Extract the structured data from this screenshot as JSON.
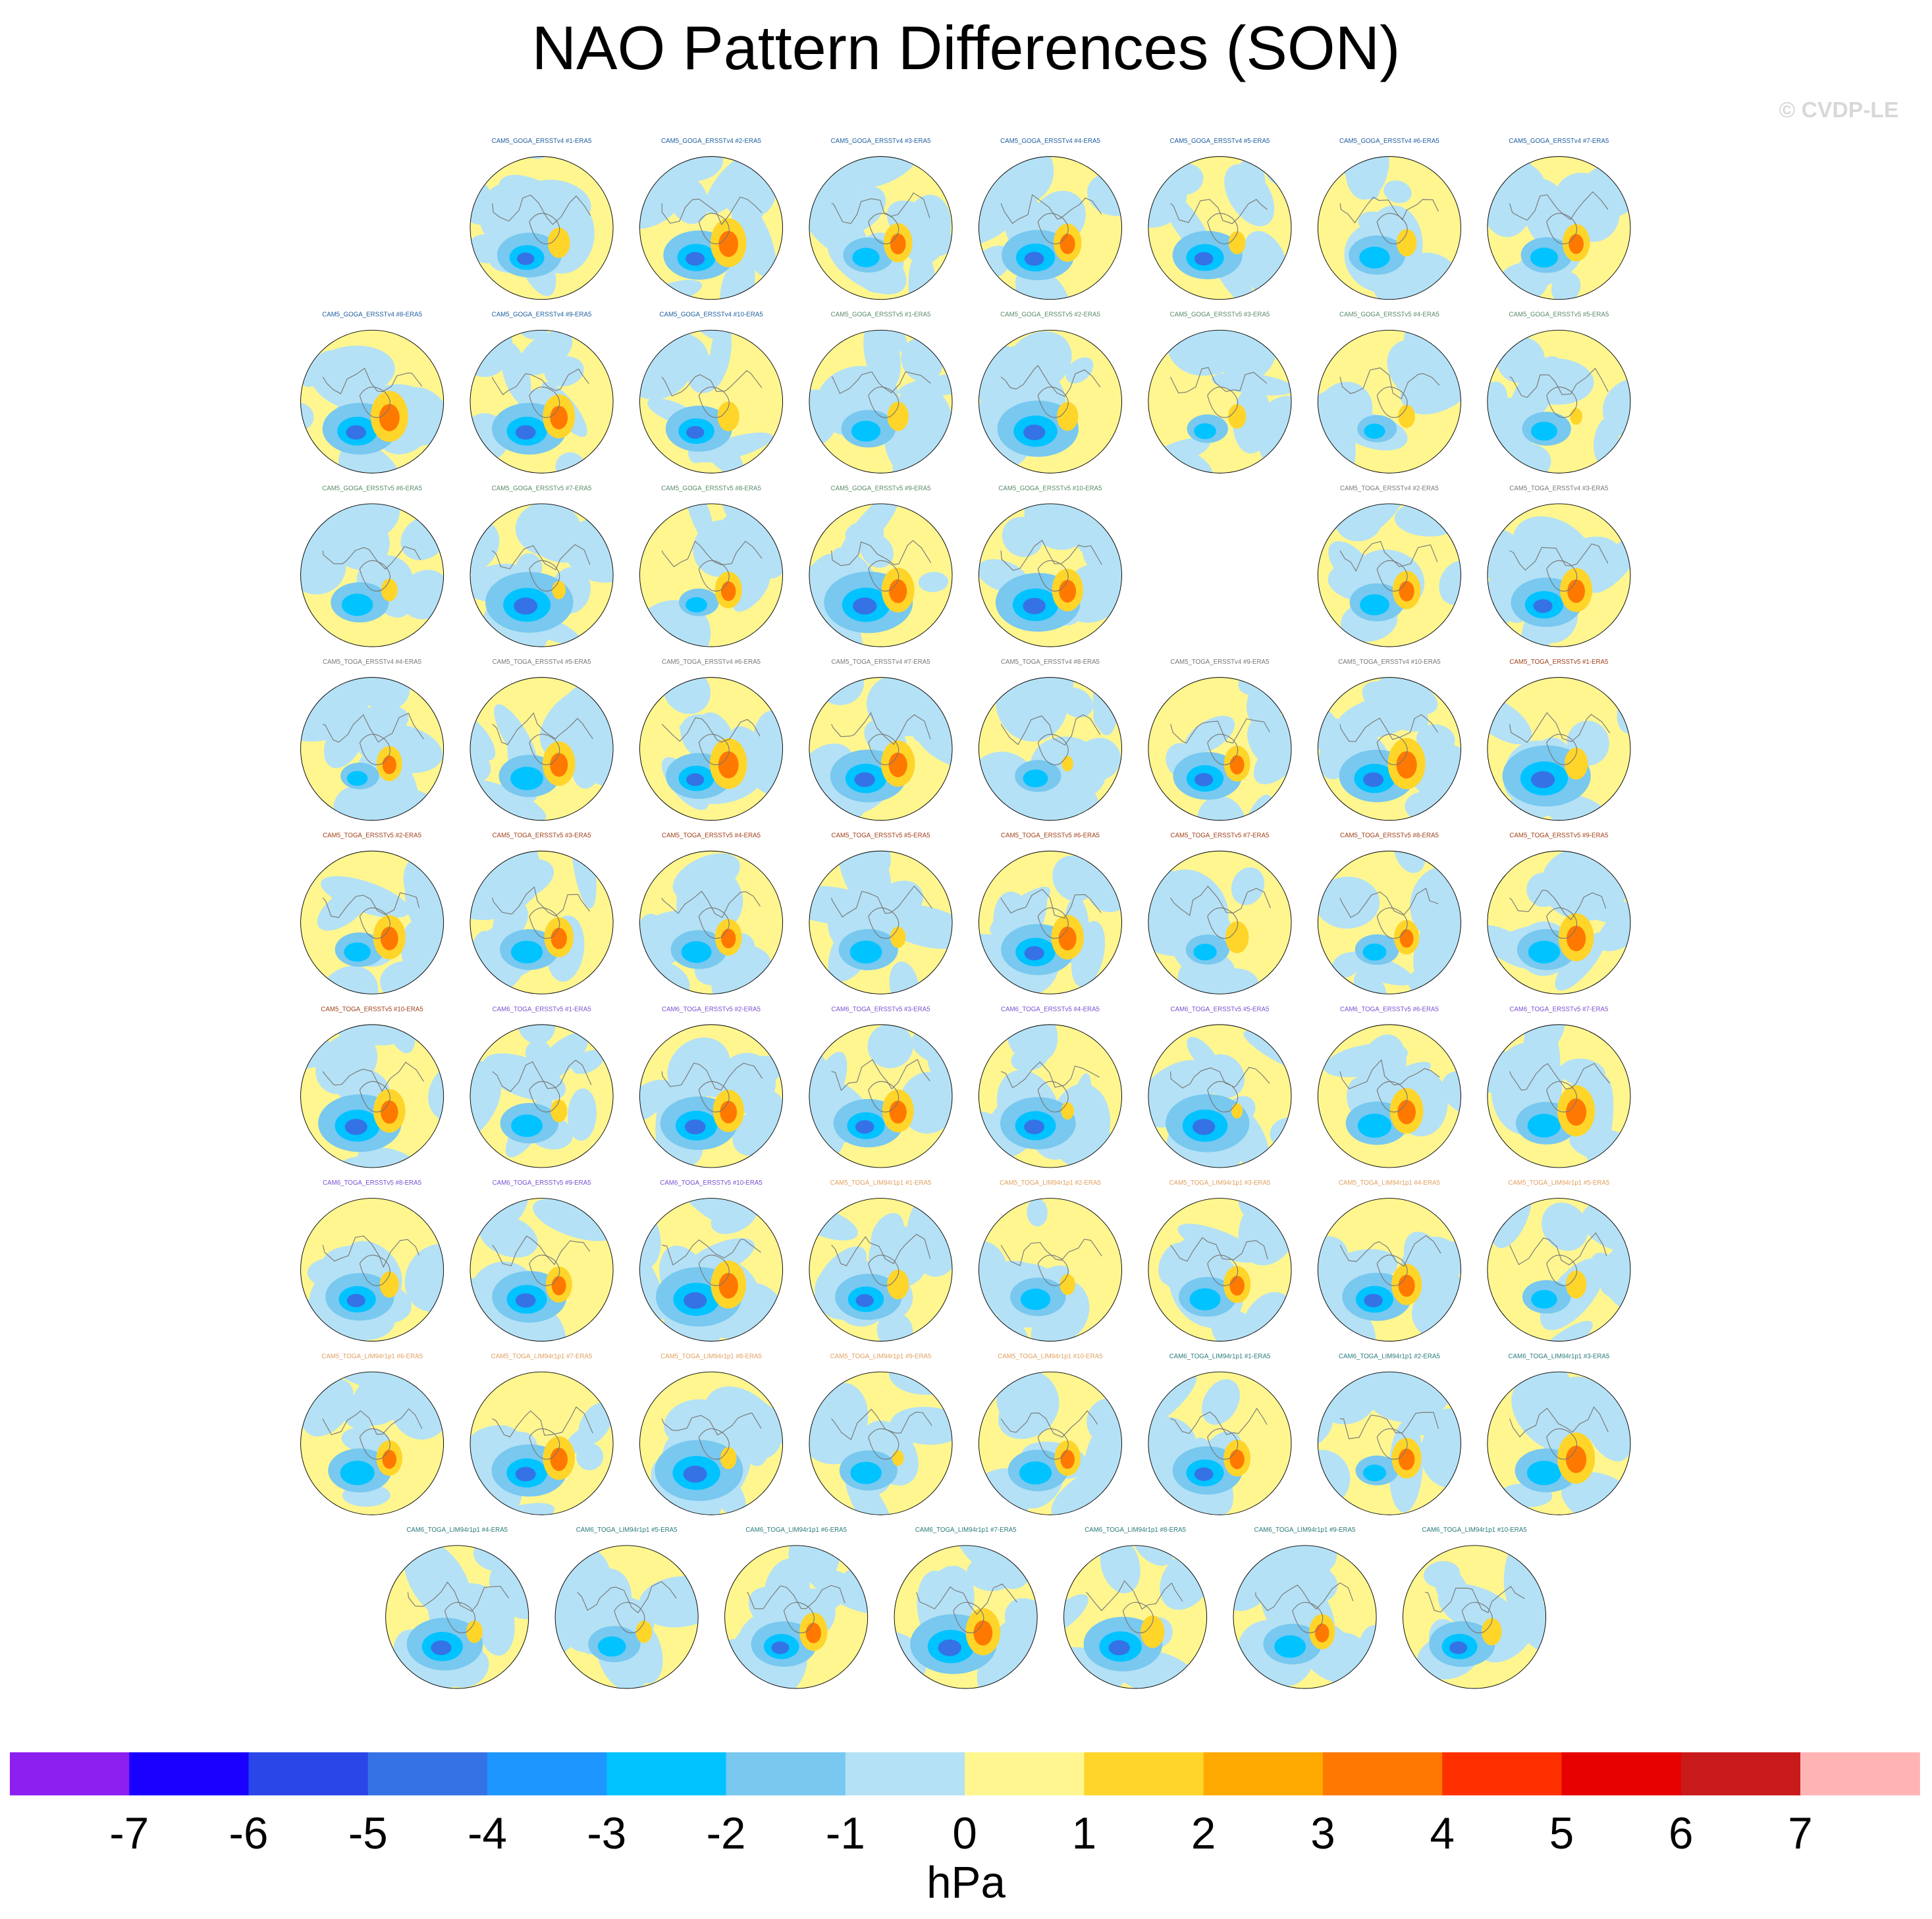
{
  "chart_data": {
    "type": "map-panels",
    "title": "NAO Pattern Differences (SON)",
    "watermark": "© CVDP-LE",
    "groups": [
      {
        "color": "#1f5fa0",
        "titles": [
          "CAM5_GOGA_ERSSTv4 #1-ERA5",
          "CAM5_GOGA_ERSSTv4 #2-ERA5",
          "CAM5_GOGA_ERSSTv4 #3-ERA5",
          "CAM5_GOGA_ERSSTv4 #4-ERA5",
          "CAM5_GOGA_ERSSTv4 #5-ERA5",
          "CAM5_GOGA_ERSSTv4 #6-ERA5",
          "CAM5_GOGA_ERSSTv4 #7-ERA5",
          "CAM5_GOGA_ERSSTv4 #8-ERA5",
          "CAM5_GOGA_ERSSTv4 #9-ERA5",
          "CAM5_GOGA_ERSSTv4 #10-ERA5"
        ]
      },
      {
        "color": "#5a8a6a",
        "titles": [
          "CAM5_GOGA_ERSSTv5 #1-ERA5",
          "CAM5_GOGA_ERSSTv5 #2-ERA5",
          "CAM5_GOGA_ERSSTv5 #3-ERA5",
          "CAM5_GOGA_ERSSTv5 #4-ERA5",
          "CAM5_GOGA_ERSSTv5 #5-ERA5",
          "CAM5_GOGA_ERSSTv5 #6-ERA5",
          "CAM5_GOGA_ERSSTv5 #7-ERA5",
          "CAM5_GOGA_ERSSTv5 #8-ERA5",
          "CAM5_GOGA_ERSSTv5 #9-ERA5",
          "CAM5_GOGA_ERSSTv5 #10-ERA5"
        ]
      },
      {
        "color": "#777777",
        "titles": [
          "CAM5_TOGA_ERSSTv4 #2-ERA5",
          "CAM5_TOGA_ERSSTv4 #3-ERA5",
          "CAM5_TOGA_ERSSTv4 #4-ERA5",
          "CAM5_TOGA_ERSSTv4 #5-ERA5",
          "CAM5_TOGA_ERSSTv4 #6-ERA5",
          "CAM5_TOGA_ERSSTv4 #7-ERA5",
          "CAM5_TOGA_ERSSTv4 #8-ERA5",
          "CAM5_TOGA_ERSSTv4 #9-ERA5",
          "CAM5_TOGA_ERSSTv4 #10-ERA5"
        ]
      },
      {
        "color": "#a0401a",
        "titles": [
          "CAM5_TOGA_ERSSTv5 #1-ERA5",
          "CAM5_TOGA_ERSSTv5 #2-ERA5",
          "CAM5_TOGA_ERSSTv5 #3-ERA5",
          "CAM5_TOGA_ERSSTv5 #4-ERA5",
          "CAM5_TOGA_ERSSTv5 #5-ERA5",
          "CAM5_TOGA_ERSSTv5 #6-ERA5",
          "CAM5_TOGA_ERSSTv5 #7-ERA5",
          "CAM5_TOGA_ERSSTv5 #8-ERA5",
          "CAM5_TOGA_ERSSTv5 #9-ERA5",
          "CAM5_TOGA_ERSSTv5 #10-ERA5"
        ]
      },
      {
        "color": "#7a4fd0",
        "titles": [
          "CAM6_TOGA_ERSSTv5 #1-ERA5",
          "CAM6_TOGA_ERSSTv5 #2-ERA5",
          "CAM6_TOGA_ERSSTv5 #3-ERA5",
          "CAM6_TOGA_ERSSTv5 #4-ERA5",
          "CAM6_TOGA_ERSSTv5 #5-ERA5",
          "CAM6_TOGA_ERSSTv5 #6-ERA5",
          "CAM6_TOGA_ERSSTv5 #7-ERA5",
          "CAM6_TOGA_ERSSTv5 #8-ERA5",
          "CAM6_TOGA_ERSSTv5 #9-ERA5",
          "CAM6_TOGA_ERSSTv5 #10-ERA5"
        ]
      },
      {
        "color": "#e0a060",
        "titles": [
          "CAM5_TOGA_LIM94r1p1 #1-ERA5",
          "CAM5_TOGA_LIM94r1p1 #2-ERA5",
          "CAM5_TOGA_LIM94r1p1 #3-ERA5",
          "CAM5_TOGA_LIM94r1p1 #4-ERA5",
          "CAM5_TOGA_LIM94r1p1 #5-ERA5",
          "CAM5_TOGA_LIM94r1p1 #6-ERA5",
          "CAM5_TOGA_LIM94r1p1 #7-ERA5",
          "CAM5_TOGA_LIM94r1p1 #8-ERA5",
          "CAM5_TOGA_LIM94r1p1 #9-ERA5",
          "CAM5_TOGA_LIM94r1p1 #10-ERA5"
        ]
      },
      {
        "color": "#2a7a7a",
        "titles": [
          "CAM6_TOGA_LIM94r1p1 #1-ERA5",
          "CAM6_TOGA_LIM94r1p1 #2-ERA5",
          "CAM6_TOGA_LIM94r1p1 #3-ERA5",
          "CAM6_TOGA_LIM94r1p1 #4-ERA5",
          "CAM6_TOGA_LIM94r1p1 #5-ERA5",
          "CAM6_TOGA_LIM94r1p1 #6-ERA5",
          "CAM6_TOGA_LIM94r1p1 #7-ERA5",
          "CAM6_TOGA_LIM94r1p1 #8-ERA5",
          "CAM6_TOGA_LIM94r1p1 #9-ERA5",
          "CAM6_TOGA_LIM94r1p1 #10-ERA5"
        ]
      }
    ],
    "colorbar": {
      "label": "hPa",
      "ticks": [
        -7,
        -6,
        -5,
        -4,
        -3,
        -2,
        -1,
        0,
        1,
        2,
        3,
        4,
        5,
        6,
        7
      ],
      "colors": [
        "#8b1ff0",
        "#1a00ff",
        "#2b46e8",
        "#3572e6",
        "#1e96ff",
        "#00c3ff",
        "#78c8f0",
        "#b4e1f5",
        "#fff690",
        "#ffd52a",
        "#ffaa00",
        "#ff7800",
        "#ff3000",
        "#e60000",
        "#c81a1a",
        "#ffb4b4"
      ]
    }
  }
}
